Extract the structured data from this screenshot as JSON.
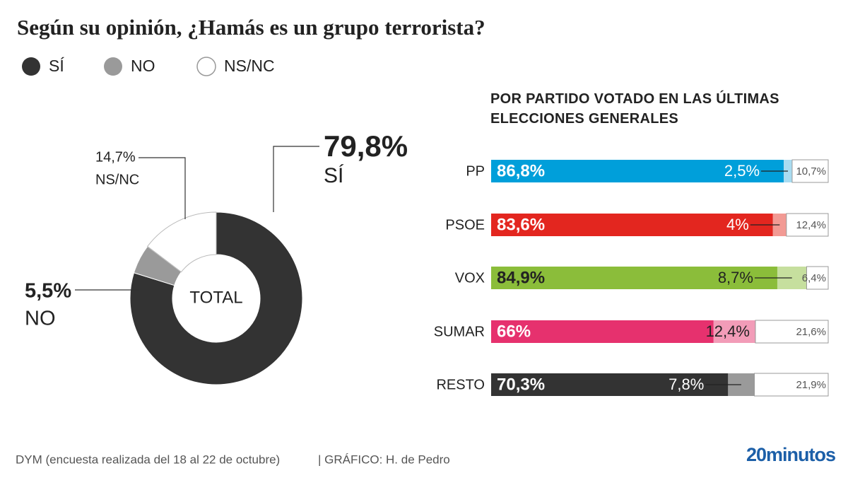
{
  "title": "Según su opinión, ¿Hamás es un grupo terrorista?",
  "footer": {
    "source": "DYM (encuesta realizada del 18 al 22 de octubre)",
    "credit": "|  GRÁFICO: H. de Pedro",
    "brand": "20minutos"
  },
  "chart_data": [
    {
      "type": "pie",
      "center_label": "TOTAL",
      "categories": [
        "SÍ",
        "NO",
        "NS/NC"
      ],
      "values": [
        79.8,
        5.5,
        14.7
      ],
      "value_labels": [
        "79,8%",
        "5,5%",
        "14,7%"
      ],
      "colors": [
        "#333333",
        "#9a9a9a",
        "#ffffff"
      ]
    },
    {
      "type": "stacked_bar",
      "title": "POR PARTIDO VOTADO EN LAS ÚLTIMAS ELECCIONES GENERALES",
      "categories": [
        "PP",
        "PSOE",
        "VOX",
        "SUMAR",
        "RESTO"
      ],
      "series": [
        {
          "name": "SÍ",
          "colors": [
            "#009fda",
            "#e3261f",
            "#8bbd3a",
            "#e6316e",
            "#333333"
          ],
          "values": [
            86.8,
            83.6,
            84.9,
            66,
            70.3
          ],
          "value_labels": [
            "86,8%",
            "83,6%",
            "84,9%",
            "66%",
            "70,3%"
          ]
        },
        {
          "name": "NO",
          "colors": [
            "#a9dcf1",
            "#f29a94",
            "#c6df9e",
            "#f29cb8",
            "#9a9a9a"
          ],
          "values": [
            2.5,
            4,
            8.7,
            12.4,
            7.8
          ],
          "value_labels": [
            "2,5%",
            "4%",
            "8,7%",
            "12,4%",
            "7,8%"
          ]
        },
        {
          "name": "NS/NC",
          "colors": [
            "#ffffff",
            "#ffffff",
            "#ffffff",
            "#ffffff",
            "#ffffff"
          ],
          "values": [
            10.7,
            12.4,
            6.4,
            21.6,
            21.9
          ],
          "value_labels": [
            "10,7%",
            "12,4%",
            "6,4%",
            "21,6%",
            "21,9%"
          ]
        }
      ]
    }
  ]
}
